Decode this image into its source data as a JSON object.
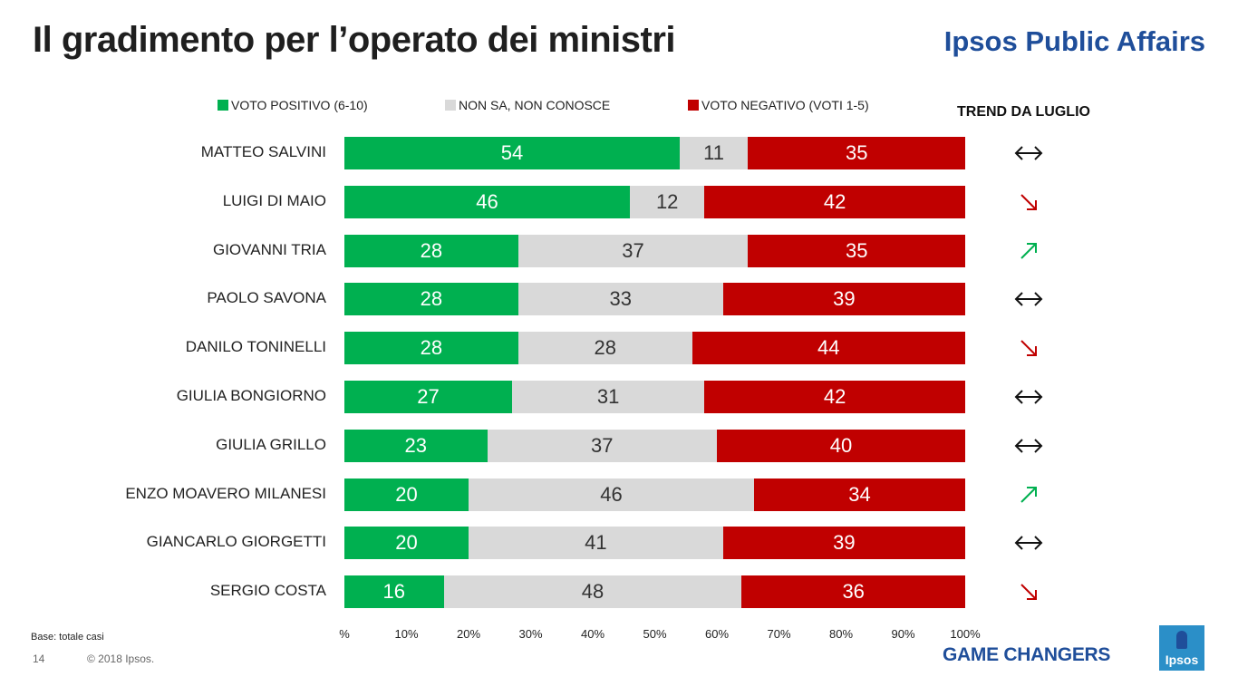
{
  "header": {
    "title": "Il gradimento per l’operato dei ministri",
    "brand": "Ipsos Public Affairs"
  },
  "legend": {
    "positive": "VOTO POSITIVO (6-10)",
    "neutral": "NON SA, NON CONOSCE",
    "negative": "VOTO NEGATIVO (VOTI 1-5)"
  },
  "trend_header": "TREND DA LUGLIO",
  "colors": {
    "positive": "#00b050",
    "neutral": "#d9d9d9",
    "negative": "#c00000",
    "trend_up": "#00b050",
    "trend_down": "#c00000",
    "trend_stable": "#111111"
  },
  "chart_data": {
    "type": "bar",
    "orientation": "horizontal",
    "stacked": true,
    "categories": [
      "MATTEO SALVINI",
      "LUIGI DI MAIO",
      "GIOVANNI TRIA",
      "PAOLO SAVONA",
      "DANILO TONINELLI",
      "GIULIA BONGIORNO",
      "GIULIA GRILLO",
      "ENZO MOAVERO MILANESI",
      "GIANCARLO GIORGETTI",
      "SERGIO COSTA"
    ],
    "series": [
      {
        "name": "VOTO POSITIVO (6-10)",
        "values": [
          54,
          46,
          28,
          28,
          28,
          27,
          23,
          20,
          20,
          16
        ]
      },
      {
        "name": "NON SA, NON CONOSCE",
        "values": [
          11,
          12,
          37,
          33,
          28,
          31,
          37,
          46,
          41,
          48
        ]
      },
      {
        "name": "VOTO NEGATIVO (VOTI 1-5)",
        "values": [
          35,
          42,
          35,
          39,
          44,
          42,
          40,
          34,
          39,
          36
        ]
      }
    ],
    "trend": [
      "stable",
      "down",
      "up",
      "stable",
      "down",
      "stable",
      "stable",
      "up",
      "stable",
      "down"
    ],
    "xlim": [
      0,
      100
    ],
    "x_ticks": [
      "%",
      "10%",
      "20%",
      "30%",
      "40%",
      "50%",
      "60%",
      "70%",
      "80%",
      "90%",
      "100%"
    ],
    "data_labels": true,
    "grid": false
  },
  "footer": {
    "base_note": "Base: totale casi",
    "page_number": "14",
    "copyright": "© 2018 Ipsos.",
    "tagline": "GAME CHANGERS",
    "logo_text": "Ipsos"
  }
}
